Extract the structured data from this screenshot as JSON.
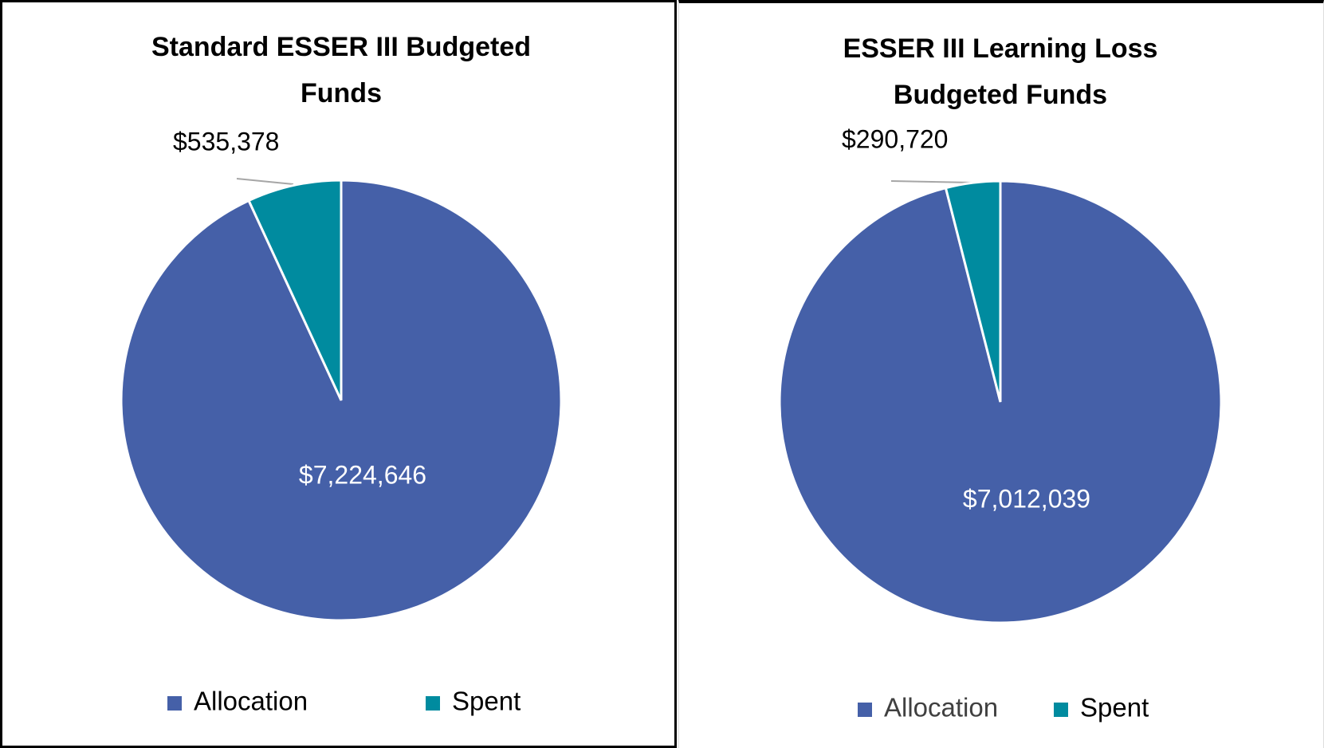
{
  "chart_data": [
    {
      "type": "pie",
      "title": "Standard ESSER III Budgeted Funds",
      "categories": [
        "Allocation",
        "Spent"
      ],
      "values": [
        7224646,
        535378
      ],
      "value_labels": [
        "$7,224,646",
        "$535,378"
      ],
      "colors": [
        "#4560a8",
        "#008b9f"
      ],
      "legend": "bottom"
    },
    {
      "type": "pie",
      "title": "ESSER III Learning Loss Budgeted Funds",
      "categories": [
        "Allocation",
        "Spent"
      ],
      "values": [
        7012039,
        290720
      ],
      "value_labels": [
        "$7,012,039",
        "$290,720"
      ],
      "colors": [
        "#4560a8",
        "#008b9f"
      ],
      "legend": "bottom"
    }
  ]
}
